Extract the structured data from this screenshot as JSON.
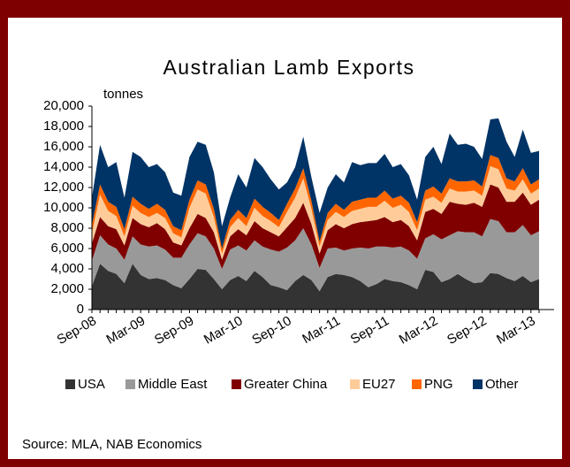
{
  "chart_data": {
    "type": "stacked_area",
    "title": "Australian Lamb Exports",
    "y_label": "tonnes",
    "source": "Source: MLA, NAB Economics",
    "categories": [
      "Sep-08",
      null,
      null,
      null,
      null,
      null,
      "Mar-09",
      null,
      null,
      null,
      null,
      null,
      "Sep-09",
      null,
      null,
      null,
      null,
      null,
      "Mar-10",
      null,
      null,
      null,
      null,
      null,
      "Sep-10",
      null,
      null,
      null,
      null,
      null,
      "Mar-11",
      null,
      null,
      null,
      null,
      null,
      "Sep-11",
      null,
      null,
      null,
      null,
      null,
      "Mar-12",
      null,
      null,
      null,
      null,
      null,
      "Sep-12",
      null,
      null,
      null,
      null,
      null,
      "Mar-13",
      null
    ],
    "ylim": [
      0,
      20000
    ],
    "yticks": [
      0,
      {
        "value": 2000,
        "label": "2,000"
      },
      {
        "value": 4000,
        "label": "4,000"
      },
      {
        "value": 6000,
        "label": "6,000"
      },
      {
        "value": 8000,
        "label": "8,000"
      },
      {
        "value": 10000,
        "label": "10,000"
      },
      {
        "value": 12000,
        "label": "12,000"
      },
      {
        "value": 14000,
        "label": "14,000"
      },
      {
        "value": 16000,
        "label": "16,000"
      },
      {
        "value": 18000,
        "label": "18,000"
      },
      {
        "value": 20000,
        "label": "20,000"
      }
    ],
    "legend": "bottom",
    "series": [
      {
        "name": "USA",
        "color": "#333333",
        "values": [
          2300,
          4500,
          3800,
          3500,
          2600,
          4500,
          3400,
          3000,
          3100,
          2900,
          2400,
          2100,
          3000,
          4000,
          3900,
          3000,
          2000,
          2900,
          3300,
          2800,
          3800,
          3200,
          2400,
          2200,
          1900,
          2800,
          3400,
          2900,
          1800,
          3200,
          3500,
          3400,
          3200,
          2800,
          2200,
          2500,
          3000,
          2800,
          2700,
          2400,
          2000,
          3900,
          3700,
          2700,
          3000,
          3500,
          3000,
          2600,
          2700,
          3600,
          3500,
          3100,
          2800,
          3300,
          2700,
          3000
        ]
      },
      {
        "name": "Middle East",
        "color": "#999999",
        "values": [
          2500,
          2800,
          2600,
          2500,
          2300,
          2700,
          3000,
          3200,
          3200,
          3000,
          2700,
          3000,
          3400,
          3500,
          3300,
          3000,
          2000,
          3000,
          3000,
          3000,
          3000,
          3000,
          3500,
          3500,
          4200,
          4000,
          4600,
          3500,
          2300,
          2800,
          2600,
          2400,
          2800,
          3300,
          3800,
          3700,
          3200,
          3300,
          3500,
          3400,
          3000,
          3100,
          3700,
          4200,
          4300,
          4200,
          4600,
          5000,
          4500,
          5300,
          5200,
          4500,
          4800,
          5000,
          4600,
          4700
        ]
      },
      {
        "name": "Greater China",
        "color": "#800000",
        "values": [
          1700,
          1800,
          1800,
          1900,
          1400,
          1800,
          2000,
          1900,
          2200,
          2000,
          1500,
          1200,
          1600,
          1900,
          1800,
          1600,
          900,
          1300,
          1600,
          1500,
          1900,
          1800,
          1700,
          1500,
          2000,
          2200,
          2500,
          2000,
          1400,
          1800,
          2300,
          2200,
          2400,
          2500,
          2700,
          2600,
          2900,
          2500,
          2600,
          2400,
          1800,
          2600,
          2500,
          2500,
          3300,
          2700,
          2700,
          2900,
          2900,
          3400,
          3300,
          3000,
          3000,
          3200,
          3000,
          3100
        ]
      },
      {
        "name": "EU27",
        "color": "#ffcc99",
        "values": [
          1000,
          2200,
          1500,
          1300,
          900,
          1200,
          1100,
          1000,
          1000,
          1100,
          900,
          800,
          2000,
          2400,
          2400,
          1500,
          600,
          900,
          1100,
          900,
          1300,
          1200,
          1100,
          900,
          1500,
          2000,
          2400,
          1500,
          700,
          1000,
          1200,
          1100,
          1300,
          1300,
          1400,
          1300,
          1600,
          1400,
          1500,
          1400,
          1000,
          1200,
          1200,
          1100,
          1300,
          1200,
          1300,
          1200,
          1100,
          1800,
          1800,
          1300,
          1100,
          1300,
          1100,
          1100
        ]
      },
      {
        "name": "PNG",
        "color": "#ff6600",
        "values": [
          800,
          1000,
          900,
          900,
          700,
          900,
          900,
          800,
          900,
          800,
          700,
          700,
          800,
          900,
          900,
          800,
          500,
          700,
          800,
          800,
          900,
          900,
          800,
          700,
          800,
          900,
          1000,
          800,
          500,
          700,
          800,
          700,
          900,
          900,
          900,
          900,
          1000,
          900,
          900,
          900,
          800,
          900,
          1000,
          900,
          1000,
          1000,
          1000,
          1000,
          900,
          1100,
          1100,
          1000,
          900,
          1100,
          900,
          900
        ]
      },
      {
        "name": "Other",
        "color": "#003366",
        "values": [
          2700,
          3900,
          3400,
          4400,
          3100,
          4400,
          4600,
          4100,
          3900,
          3700,
          3300,
          3400,
          4200,
          3800,
          3900,
          3600,
          2200,
          2200,
          3500,
          3000,
          4000,
          3900,
          3300,
          3000,
          2100,
          2100,
          3100,
          2300,
          2800,
          2500,
          2900,
          2700,
          3900,
          3400,
          3400,
          3400,
          3600,
          3100,
          3100,
          2700,
          2200,
          3300,
          3900,
          2900,
          4400,
          3600,
          3700,
          3300,
          2700,
          3500,
          3900,
          3600,
          2400,
          3800,
          3100,
          2800
        ]
      }
    ]
  }
}
